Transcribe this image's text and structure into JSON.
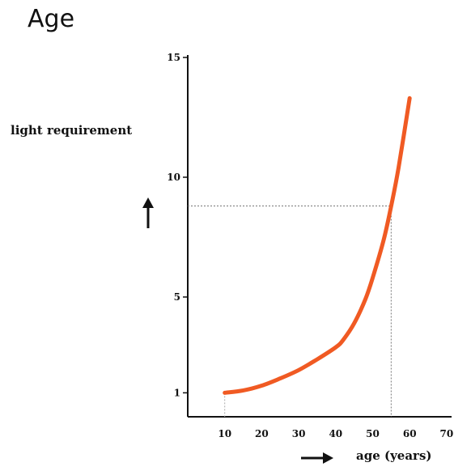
{
  "chart_data": {
    "type": "line",
    "title": "Age",
    "xlabel": "age (years)",
    "ylabel": "light requirement",
    "x_ticks": [
      10,
      20,
      30,
      40,
      50,
      60,
      70
    ],
    "y_ticks": [
      1,
      5,
      10,
      15
    ],
    "xlim": [
      0,
      70
    ],
    "ylim": [
      0,
      15
    ],
    "grid": false,
    "series": [
      {
        "color": "#f05a23",
        "x": [
          10,
          15,
          20,
          25,
          30,
          35,
          40,
          42,
          45,
          48,
          50,
          53,
          55,
          57,
          60
        ],
        "y": [
          1.0,
          1.1,
          1.3,
          1.6,
          1.95,
          2.4,
          2.9,
          3.2,
          3.9,
          4.9,
          5.8,
          7.4,
          8.8,
          10.4,
          13.3
        ]
      }
    ],
    "reference": {
      "x": 55,
      "y": 8.8
    }
  }
}
